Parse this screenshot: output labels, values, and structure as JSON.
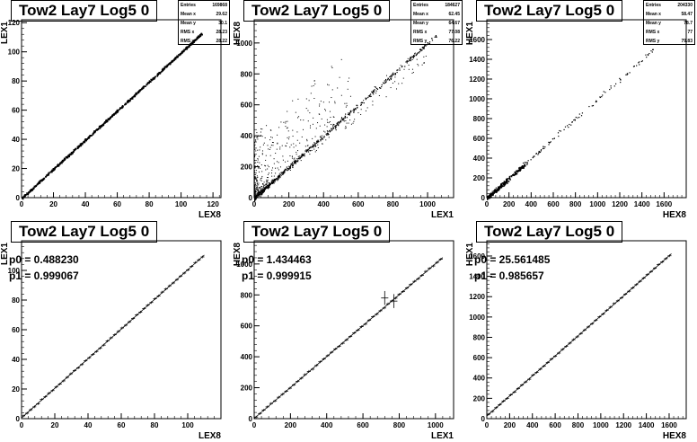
{
  "pads": [
    {
      "title": "Tow2 Lay7 Log5 0",
      "stats": [
        [
          "Entries",
          "169868"
        ],
        [
          "Mean x",
          "29.62"
        ],
        [
          "Mean y",
          "30.1"
        ],
        [
          "RMS x",
          "28.23"
        ],
        [
          "RMS y",
          "28.22"
        ]
      ],
      "chart_data": {
        "type": "scatter",
        "xlabel": "LEX8",
        "ylabel": "LEX1",
        "xlim": [
          0,
          125
        ],
        "ylim": [
          0,
          122
        ],
        "xticks": [
          "0",
          "20",
          "40",
          "60",
          "80",
          "100",
          "120"
        ],
        "yticks": [
          "0",
          "20",
          "40",
          "60",
          "80",
          "100",
          "120"
        ],
        "line": {
          "from": [
            0,
            0
          ],
          "to": [
            113,
            113
          ]
        }
      }
    },
    {
      "title": "Tow2 Lay7 Log5 0",
      "stats": [
        [
          "Entries",
          "184627"
        ],
        [
          "Mean x",
          "62.45"
        ],
        [
          "Mean y",
          "64.67"
        ],
        [
          "RMS x",
          "77.08"
        ],
        [
          "RMS y",
          "76.22"
        ]
      ],
      "chart_data": {
        "type": "scatter",
        "xlabel": "LEX1",
        "ylabel": "HEX8",
        "xlim": [
          0,
          1150
        ],
        "ylim": [
          0,
          1150
        ],
        "xticks": [
          "0",
          "200",
          "400",
          "600",
          "800",
          "1000"
        ],
        "yticks": [
          "0",
          "200",
          "400",
          "600",
          "800",
          "1000"
        ],
        "line": {
          "from": [
            0,
            0
          ],
          "to": [
            1050,
            1050
          ]
        }
      }
    },
    {
      "title": "Tow2 Lay7 Log5 0",
      "stats": [
        [
          "Entries",
          "204330"
        ],
        [
          "Mean x",
          "58.47"
        ],
        [
          "Mean y",
          "78.7"
        ],
        [
          "RMS x",
          "77"
        ],
        [
          "RMS y",
          "79.83"
        ]
      ],
      "chart_data": {
        "type": "scatter",
        "xlabel": "HEX8",
        "ylabel": "HEX1",
        "xlim": [
          0,
          1800
        ],
        "ylim": [
          0,
          1800
        ],
        "xticks": [
          "0",
          "200",
          "400",
          "600",
          "800",
          "1000",
          "1200",
          "1400",
          "1600"
        ],
        "yticks": [
          "0",
          "200",
          "400",
          "600",
          "800",
          "1000",
          "1200",
          "1400",
          "1600"
        ],
        "line": {
          "from": [
            0,
            0
          ],
          "to": [
            1500,
            1500
          ]
        }
      }
    },
    {
      "title": "Tow2 Lay7 Log5 0",
      "fit": [
        "p0 = 0.488230",
        "p1 = 0.999067"
      ],
      "chart_data": {
        "type": "line",
        "xlabel": "LEX8",
        "ylabel": "LEX1",
        "xlim": [
          0,
          120
        ],
        "ylim": [
          0,
          120
        ],
        "xticks": [
          "0",
          "20",
          "40",
          "60",
          "80",
          "100"
        ],
        "yticks": [
          "0",
          "20",
          "40",
          "60",
          "80",
          "100"
        ],
        "fit_function": {
          "p0": 0.48823,
          "p1": 0.999067,
          "x_range": [
            0,
            110
          ]
        }
      }
    },
    {
      "title": "Tow2 Lay7 Log5 0",
      "fit": [
        "p0 = 1.434463",
        "p1 = 0.999915"
      ],
      "chart_data": {
        "type": "line",
        "xlabel": "LEX1",
        "ylabel": "HEX8",
        "xlim": [
          0,
          1100
        ],
        "ylim": [
          0,
          1150
        ],
        "xticks": [
          "0",
          "200",
          "400",
          "600",
          "800",
          "1000"
        ],
        "yticks": [
          "0",
          "200",
          "400",
          "600",
          "800",
          "1000"
        ],
        "fit_function": {
          "p0": 1.434463,
          "p1": 0.999915,
          "x_range": [
            0,
            1040
          ]
        }
      }
    },
    {
      "title": "Tow2 Lay7 Log5 0",
      "fit": [
        "p0 = 25.561485",
        "p1 = 0.985657"
      ],
      "chart_data": {
        "type": "line",
        "xlabel": "HEX8",
        "ylabel": "HEX1",
        "xlim": [
          0,
          1750
        ],
        "ylim": [
          0,
          1750
        ],
        "xticks": [
          "0",
          "200",
          "400",
          "600",
          "800",
          "1000",
          "1200",
          "1400",
          "1600"
        ],
        "yticks": [
          "0",
          "200",
          "400",
          "600",
          "800",
          "1000",
          "1200",
          "1400",
          "1600"
        ],
        "fit_function": {
          "p0": 25.561485,
          "p1": 0.985657,
          "x_range": [
            0,
            1620
          ]
        }
      }
    }
  ]
}
